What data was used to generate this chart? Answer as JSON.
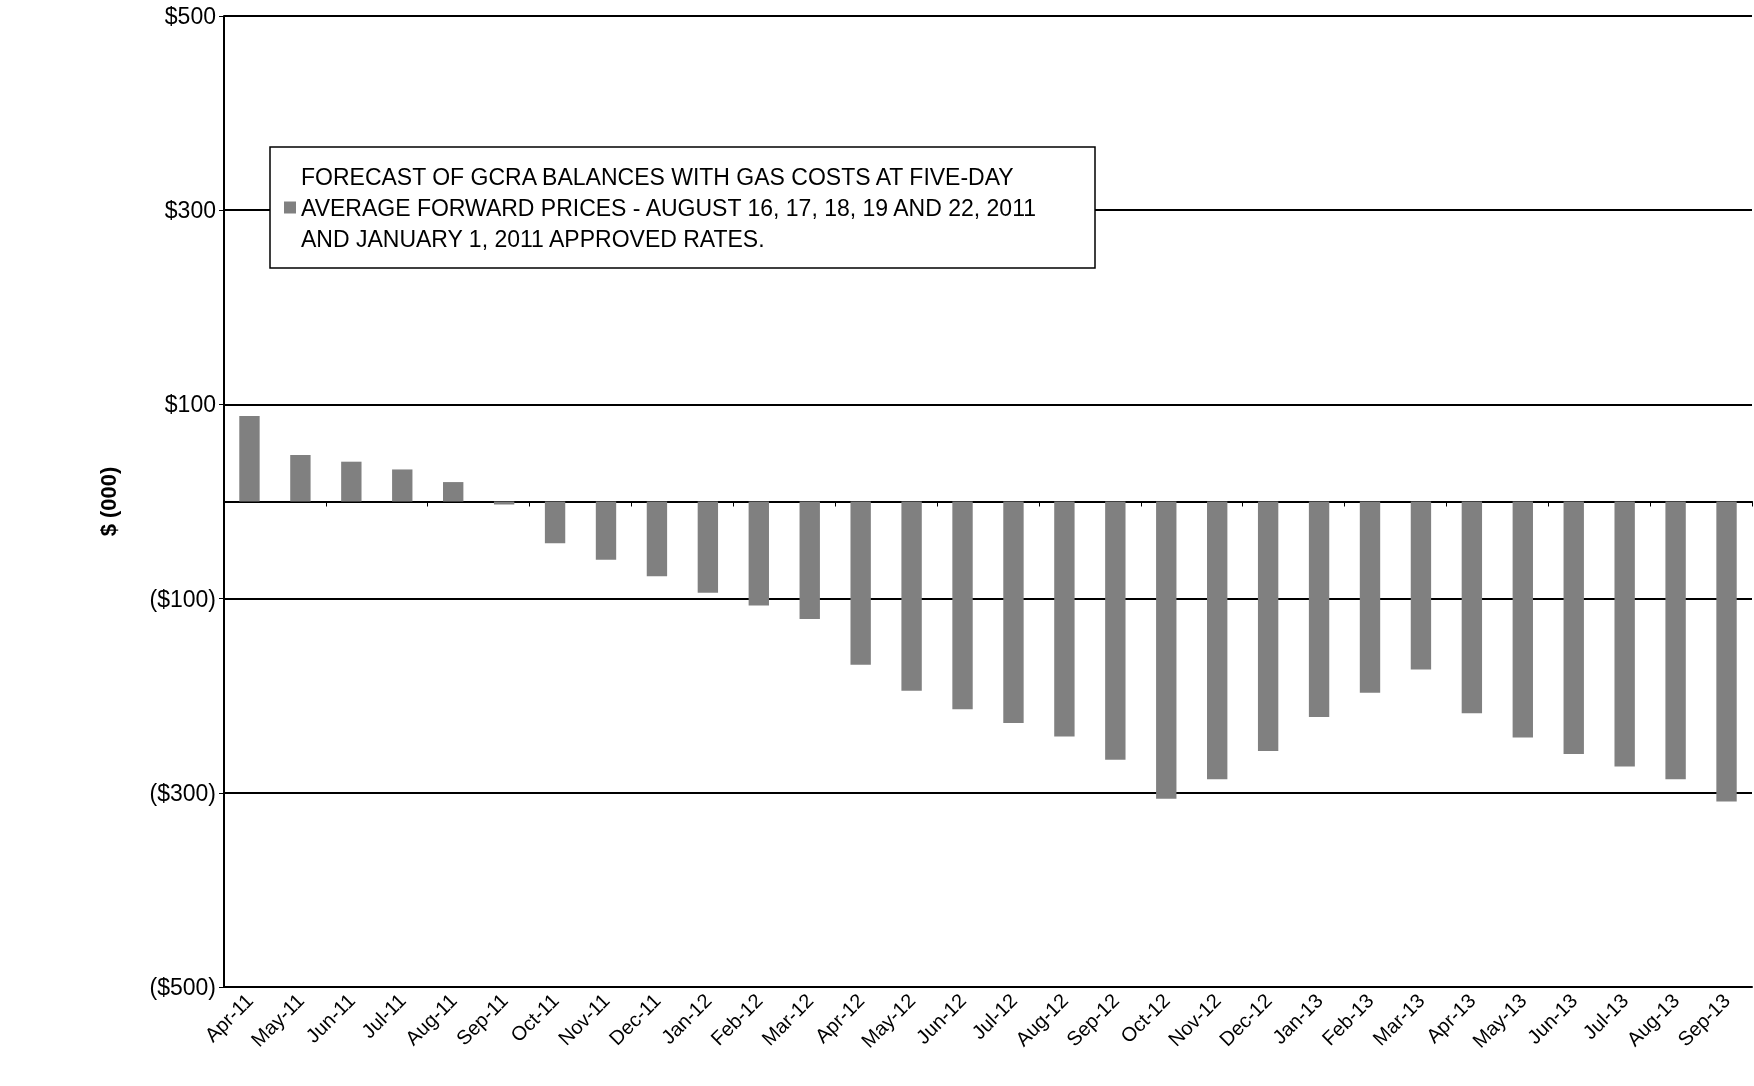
{
  "chart_data": {
    "type": "bar",
    "ylabel": "$ (000)",
    "categories": [
      "Apr-11",
      "May-11",
      "Jun-11",
      "Jul-11",
      "Aug-11",
      "Sep-11",
      "Oct-11",
      "Nov-11",
      "Dec-11",
      "Jan-12",
      "Feb-12",
      "Mar-12",
      "Apr-12",
      "May-12",
      "Jun-12",
      "Jul-12",
      "Aug-12",
      "Sep-12",
      "Oct-12",
      "Nov-12",
      "Dec-12",
      "Jan-13",
      "Feb-13",
      "Mar-13",
      "Apr-13",
      "May-13",
      "Jun-13",
      "Jul-13",
      "Aug-13",
      "Sep-13"
    ],
    "series": [
      {
        "name": "FORECAST OF GCRA BALANCES WITH GAS COSTS AT FIVE-DAY AVERAGE FORWARD PRICES - AUGUST 16, 17, 18, 19 AND 22, 2011 AND JANUARY 1, 2011 APPROVED RATES.",
        "color": "#808080",
        "values": [
          88,
          48,
          41,
          33,
          20,
          -3,
          -43,
          -60,
          -77,
          -94,
          -107,
          -121,
          -168,
          -195,
          -214,
          -228,
          -242,
          -266,
          -306,
          -286,
          -257,
          -222,
          -197,
          -173,
          -218,
          -243,
          -260,
          -273,
          -286,
          -309
        ]
      }
    ],
    "ylim": [
      -500,
      500
    ],
    "yticks": [
      {
        "value": -500,
        "label": "($500)"
      },
      {
        "value": -300,
        "label": "($300)"
      },
      {
        "value": -100,
        "label": "($100)"
      },
      {
        "value": 100,
        "label": "$100"
      },
      {
        "value": 300,
        "label": "$300"
      },
      {
        "value": 500,
        "label": "$500"
      }
    ],
    "grid": "y",
    "legend": "top left"
  }
}
